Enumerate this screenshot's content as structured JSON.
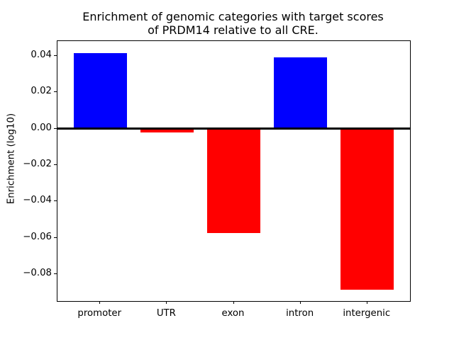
{
  "figure": {
    "title_line1": "Enrichment of genomic categories with target scores",
    "title_line2": "of PRDM14 relative to all CRE."
  },
  "chart_data": {
    "type": "bar",
    "title": "Enrichment of genomic categories with target scores of PRDM14 relative to all CRE.",
    "xlabel": "",
    "ylabel": "Enrichment (log10)",
    "categories": [
      "promoter",
      "UTR",
      "exon",
      "intron",
      "intergenic"
    ],
    "values": [
      0.0415,
      -0.0022,
      -0.0575,
      0.039,
      -0.0885
    ],
    "bar_colors": [
      "#0000ff",
      "#ff0000",
      "#ff0000",
      "#0000ff",
      "#ff0000"
    ],
    "positive_color": "#0000ff",
    "negative_color": "#ff0000",
    "yticks": [
      0.04,
      0.02,
      0.0,
      -0.02,
      -0.04,
      -0.06,
      -0.08
    ],
    "ytick_labels": [
      "0.04",
      "0.02",
      "0.00",
      "−0.02",
      "−0.04",
      "−0.06",
      "−0.08"
    ],
    "ylim": [
      -0.0948,
      0.0481
    ],
    "xlim": [
      -0.64,
      4.64
    ],
    "bar_width_fraction": 0.8,
    "grid": false,
    "legend": false,
    "zero_line": true,
    "zero_line_color": "#000000",
    "background_color": "#ffffff",
    "spine_color": "#000000"
  }
}
